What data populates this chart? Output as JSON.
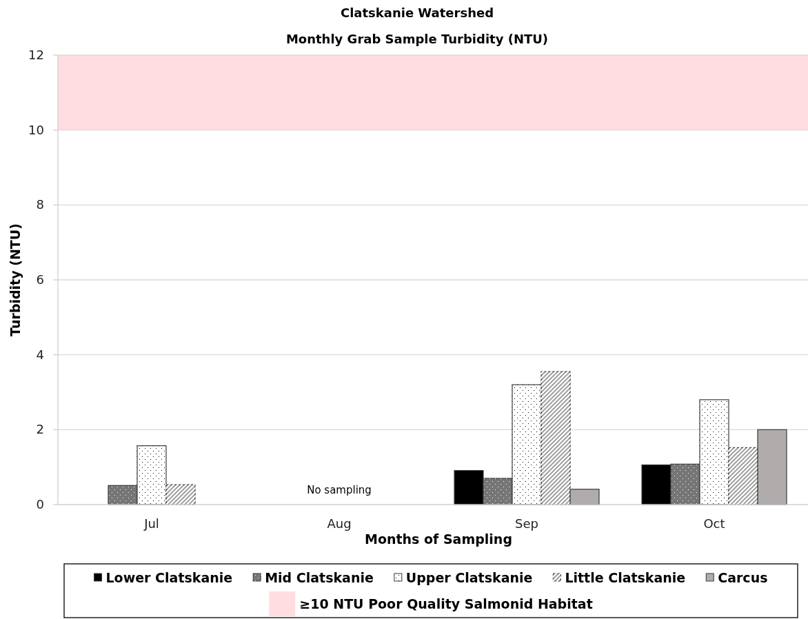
{
  "chart_data": {
    "type": "bar",
    "title": "Clatskanie Watershed",
    "subtitle": "Monthly Grab Sample Turbidity (NTU)",
    "xlabel": "Months of Sampling",
    "ylabel": "Turbidity (NTU)",
    "categories": [
      "Jul",
      "Aug",
      "Sep",
      "Oct"
    ],
    "series": [
      {
        "name": "Lower Clatskanie",
        "color": "#000000",
        "values": [
          null,
          null,
          0.91,
          1.06
        ]
      },
      {
        "name": "Mid Clatskanie",
        "color": "#767676",
        "values": [
          0.51,
          null,
          0.7,
          1.08
        ]
      },
      {
        "name": "Upper Clatskanie",
        "color": "#ffffff",
        "values": [
          1.57,
          null,
          3.2,
          2.8
        ]
      },
      {
        "name": "Little Clatskanie",
        "color": "#a6a6a6",
        "values": [
          0.53,
          null,
          3.55,
          1.52
        ]
      },
      {
        "name": "Carcus",
        "color": "#b0acac",
        "values": [
          null,
          null,
          0.41,
          2.0
        ]
      }
    ],
    "ylim": [
      0,
      12
    ],
    "yticks": [
      0,
      2,
      4,
      6,
      8,
      10,
      12
    ],
    "grid": "y",
    "legend": "bottom",
    "bands": [
      {
        "axis": "y",
        "from": 10,
        "to": 12,
        "label": "≥10 NTU Poor Quality Salmonid Habitat",
        "color": "#ffdde0"
      }
    ],
    "annotations": [
      "No sampling"
    ]
  }
}
